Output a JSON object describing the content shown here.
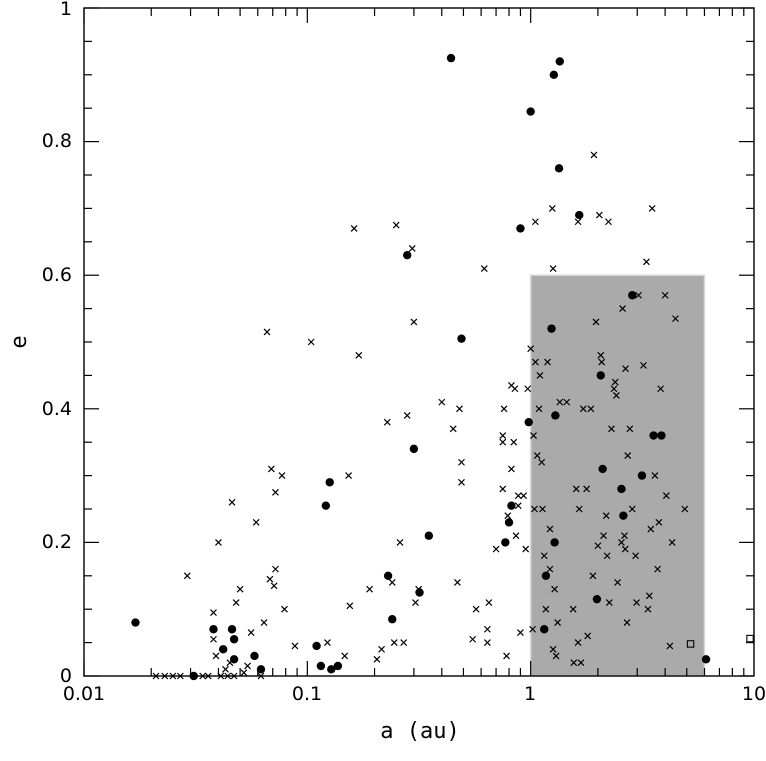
{
  "chart_data": {
    "type": "scatter",
    "title": "",
    "xlabel": "a (au)",
    "ylabel": "e",
    "xscale": "log",
    "xlim": [
      0.01,
      10
    ],
    "ylim": [
      0,
      1
    ],
    "grid": false,
    "x_tick_labels": [
      "0.01",
      "0.1",
      "1",
      "10"
    ],
    "y_tick_labels": [
      "0",
      "0.2",
      "0.4",
      "0.6",
      "0.8",
      "1"
    ],
    "shaded_region": {
      "x": [
        1.0,
        6.0
      ],
      "y": [
        0,
        0.6
      ],
      "color": "#aaaaaa"
    },
    "series": [
      {
        "marker": "filled-circle",
        "points": [
          [
            0.017,
            0.08
          ],
          [
            0.031,
            0.0
          ],
          [
            0.038,
            0.07
          ],
          [
            0.042,
            0.04
          ],
          [
            0.046,
            0.07
          ],
          [
            0.047,
            0.055
          ],
          [
            0.047,
            0.025
          ],
          [
            0.058,
            0.03
          ],
          [
            0.062,
            0.01
          ],
          [
            0.11,
            0.045
          ],
          [
            0.115,
            0.015
          ],
          [
            0.121,
            0.255
          ],
          [
            0.126,
            0.29
          ],
          [
            0.128,
            0.01
          ],
          [
            0.137,
            0.015
          ],
          [
            0.24,
            0.085
          ],
          [
            0.23,
            0.15
          ],
          [
            0.28,
            0.63
          ],
          [
            0.3,
            0.34
          ],
          [
            0.318,
            0.125
          ],
          [
            0.35,
            0.21
          ],
          [
            0.44,
            0.925
          ],
          [
            0.49,
            0.505
          ],
          [
            0.77,
            0.2
          ],
          [
            0.8,
            0.23
          ],
          [
            0.82,
            0.255
          ],
          [
            0.9,
            0.67
          ],
          [
            0.98,
            0.38
          ],
          [
            1.0,
            0.845
          ],
          [
            1.15,
            0.07
          ],
          [
            1.17,
            0.15
          ],
          [
            1.24,
            0.52
          ],
          [
            1.28,
            0.2
          ],
          [
            1.29,
            0.39
          ],
          [
            1.27,
            0.9
          ],
          [
            1.35,
            0.92
          ],
          [
            1.34,
            0.76
          ],
          [
            1.65,
            0.69
          ],
          [
            1.98,
            0.115
          ],
          [
            2.06,
            0.45
          ],
          [
            2.1,
            0.31
          ],
          [
            2.55,
            0.28
          ],
          [
            2.6,
            0.24
          ],
          [
            2.85,
            0.57
          ],
          [
            3.15,
            0.3
          ],
          [
            3.55,
            0.36
          ],
          [
            3.85,
            0.36
          ],
          [
            6.1,
            0.025
          ]
        ]
      },
      {
        "marker": "cross",
        "points": [
          [
            0.021,
            0.0
          ],
          [
            0.023,
            0.0
          ],
          [
            0.025,
            0.0
          ],
          [
            0.027,
            0.0
          ],
          [
            0.029,
            0.15
          ],
          [
            0.034,
            0.0
          ],
          [
            0.036,
            0.0
          ],
          [
            0.038,
            0.095
          ],
          [
            0.038,
            0.055
          ],
          [
            0.039,
            0.03
          ],
          [
            0.04,
            0.2
          ],
          [
            0.041,
            0.0
          ],
          [
            0.043,
            0.01
          ],
          [
            0.044,
            0.0
          ],
          [
            0.045,
            0.02
          ],
          [
            0.046,
            0.26
          ],
          [
            0.047,
            0.0
          ],
          [
            0.048,
            0.11
          ],
          [
            0.05,
            0.13
          ],
          [
            0.052,
            0.005
          ],
          [
            0.054,
            0.015
          ],
          [
            0.056,
            0.065
          ],
          [
            0.059,
            0.23
          ],
          [
            0.062,
            0.0
          ],
          [
            0.064,
            0.08
          ],
          [
            0.066,
            0.515
          ],
          [
            0.068,
            0.145
          ],
          [
            0.069,
            0.31
          ],
          [
            0.071,
            0.135
          ],
          [
            0.072,
            0.16
          ],
          [
            0.072,
            0.275
          ],
          [
            0.077,
            0.3
          ],
          [
            0.079,
            0.1
          ],
          [
            0.088,
            0.045
          ],
          [
            0.104,
            0.5
          ],
          [
            0.123,
            0.05
          ],
          [
            0.147,
            0.03
          ],
          [
            0.155,
            0.105
          ],
          [
            0.153,
            0.3
          ],
          [
            0.162,
            0.67
          ],
          [
            0.17,
            0.48
          ],
          [
            0.19,
            0.13
          ],
          [
            0.205,
            0.025
          ],
          [
            0.215,
            0.04
          ],
          [
            0.228,
            0.38
          ],
          [
            0.24,
            0.14
          ],
          [
            0.245,
            0.05
          ],
          [
            0.25,
            0.675
          ],
          [
            0.26,
            0.2
          ],
          [
            0.27,
            0.05
          ],
          [
            0.28,
            0.39
          ],
          [
            0.295,
            0.64
          ],
          [
            0.3,
            0.53
          ],
          [
            0.305,
            0.11
          ],
          [
            0.315,
            0.13
          ],
          [
            0.4,
            0.41
          ],
          [
            0.45,
            0.37
          ],
          [
            0.47,
            0.14
          ],
          [
            0.48,
            0.4
          ],
          [
            0.49,
            0.32
          ],
          [
            0.49,
            0.29
          ],
          [
            0.55,
            0.055
          ],
          [
            0.57,
            0.1
          ],
          [
            0.62,
            0.61
          ],
          [
            0.64,
            0.05
          ],
          [
            0.64,
            0.07
          ],
          [
            0.65,
            0.11
          ],
          [
            0.7,
            0.19
          ],
          [
            0.75,
            0.35
          ],
          [
            0.75,
            0.28
          ],
          [
            0.75,
            0.36
          ],
          [
            0.76,
            0.4
          ],
          [
            0.78,
            0.03
          ],
          [
            0.79,
            0.24
          ],
          [
            0.82,
            0.435
          ],
          [
            0.82,
            0.31
          ],
          [
            0.84,
            0.35
          ],
          [
            0.85,
            0.43
          ],
          [
            0.86,
            0.21
          ],
          [
            0.88,
            0.255
          ],
          [
            0.88,
            0.27
          ],
          [
            0.9,
            0.065
          ],
          [
            0.93,
            0.27
          ],
          [
            0.95,
            0.19
          ],
          [
            0.97,
            0.43
          ],
          [
            1.0,
            0.49
          ],
          [
            1.02,
            0.07
          ],
          [
            1.03,
            0.36
          ],
          [
            1.04,
            0.25
          ],
          [
            1.05,
            0.47
          ],
          [
            1.05,
            0.68
          ],
          [
            1.07,
            0.33
          ],
          [
            1.09,
            0.4
          ],
          [
            1.1,
            0.45
          ],
          [
            1.12,
            0.32
          ],
          [
            1.13,
            0.25
          ],
          [
            1.15,
            0.18
          ],
          [
            1.17,
            0.1
          ],
          [
            1.19,
            0.47
          ],
          [
            1.22,
            0.22
          ],
          [
            1.22,
            0.16
          ],
          [
            1.25,
            0.7
          ],
          [
            1.26,
            0.61
          ],
          [
            1.26,
            0.04
          ],
          [
            1.28,
            0.13
          ],
          [
            1.3,
            0.03
          ],
          [
            1.32,
            0.08
          ],
          [
            1.35,
            0.41
          ],
          [
            1.45,
            0.41
          ],
          [
            1.55,
            0.1
          ],
          [
            1.56,
            0.02
          ],
          [
            1.6,
            0.28
          ],
          [
            1.63,
            0.68
          ],
          [
            1.63,
            0.05
          ],
          [
            1.65,
            0.25
          ],
          [
            1.68,
            0.02
          ],
          [
            1.72,
            0.4
          ],
          [
            1.78,
            0.28
          ],
          [
            1.8,
            0.06
          ],
          [
            1.86,
            0.4
          ],
          [
            1.9,
            0.15
          ],
          [
            1.92,
            0.78
          ],
          [
            1.96,
            0.53
          ],
          [
            2.0,
            0.195
          ],
          [
            2.03,
            0.69
          ],
          [
            2.06,
            0.48
          ],
          [
            2.08,
            0.47
          ],
          [
            2.12,
            0.21
          ],
          [
            2.18,
            0.24
          ],
          [
            2.2,
            0.18
          ],
          [
            2.23,
            0.68
          ],
          [
            2.25,
            0.11
          ],
          [
            2.3,
            0.37
          ],
          [
            2.36,
            0.43
          ],
          [
            2.39,
            0.44
          ],
          [
            2.42,
            0.42
          ],
          [
            2.45,
            0.14
          ],
          [
            2.55,
            0.2
          ],
          [
            2.58,
            0.55
          ],
          [
            2.63,
            0.21
          ],
          [
            2.65,
            0.19
          ],
          [
            2.66,
            0.46
          ],
          [
            2.7,
            0.08
          ],
          [
            2.72,
            0.33
          ],
          [
            2.78,
            0.37
          ],
          [
            2.85,
            0.25
          ],
          [
            2.95,
            0.18
          ],
          [
            2.98,
            0.11
          ],
          [
            3.04,
            0.57
          ],
          [
            3.2,
            0.465
          ],
          [
            3.3,
            0.62
          ],
          [
            3.35,
            0.1
          ],
          [
            3.4,
            0.12
          ],
          [
            3.45,
            0.22
          ],
          [
            3.5,
            0.7
          ],
          [
            3.6,
            0.3
          ],
          [
            3.7,
            0.16
          ],
          [
            3.75,
            0.23
          ],
          [
            3.82,
            0.43
          ],
          [
            4.0,
            0.57
          ],
          [
            4.05,
            0.27
          ],
          [
            4.2,
            0.045
          ],
          [
            4.3,
            0.2
          ],
          [
            4.45,
            0.535
          ],
          [
            4.9,
            0.25
          ]
        ]
      },
      {
        "marker": "open-square",
        "points": [
          [
            5.2,
            0.048
          ],
          [
            9.6,
            0.056
          ]
        ]
      }
    ]
  }
}
